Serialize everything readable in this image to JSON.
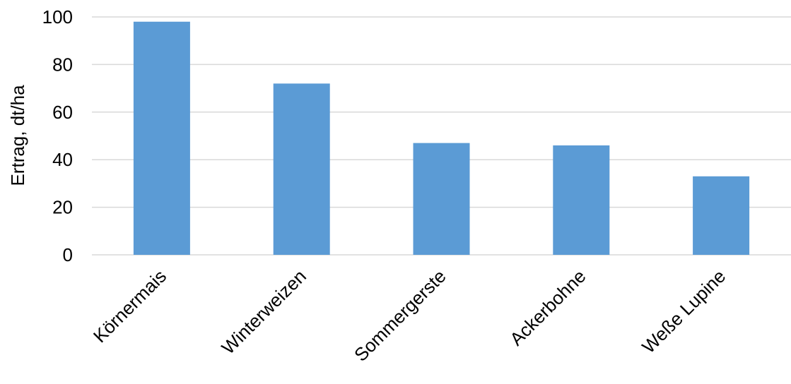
{
  "chart_data": {
    "type": "bar",
    "title": "",
    "xlabel": "",
    "ylabel": "Ertrag, dt/ha",
    "categories": [
      "Körnermais",
      "Winterweizen",
      "Sommergerste",
      "Ackerbohne",
      "Weße Lupine"
    ],
    "series": [
      {
        "values": [
          98,
          72,
          47,
          46,
          33
        ]
      }
    ],
    "ylim": [
      0,
      100
    ],
    "yticks": [
      0,
      20,
      40,
      60,
      80,
      100
    ],
    "ytick_labels": [
      "0",
      "20",
      "40",
      "60",
      "80",
      "100"
    ],
    "grid": true,
    "bar_color": "#5b9bd5",
    "grid_color": "#d9d9d9"
  }
}
